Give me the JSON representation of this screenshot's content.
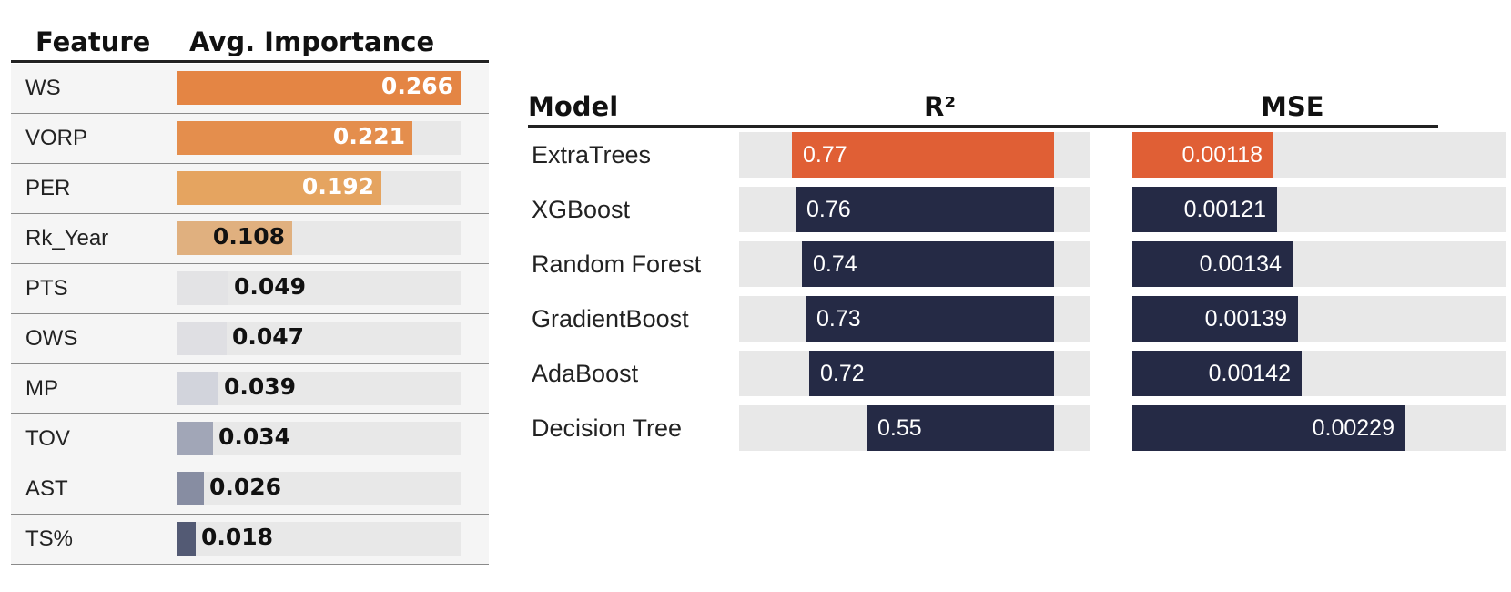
{
  "feature_table": {
    "headers": {
      "feature": "Feature",
      "importance": "Avg. Importance"
    }
  },
  "model_table": {
    "headers": {
      "model": "Model",
      "r2": "R²",
      "mse": "MSE"
    }
  },
  "colors": {
    "accent_orange": "#e05f35",
    "navy": "#252a45",
    "track": "#e8e8e8"
  },
  "chart_data": [
    {
      "type": "bar",
      "orientation": "horizontal",
      "categories": [
        "WS",
        "VORP",
        "PER",
        "Rk_Year",
        "PTS",
        "OWS",
        "MP",
        "TOV",
        "AST",
        "TS%"
      ],
      "values": [
        0.266,
        0.221,
        0.192,
        0.108,
        0.049,
        0.047,
        0.039,
        0.034,
        0.026,
        0.018
      ],
      "labels": [
        "0.266",
        "0.221",
        "0.192",
        "0.108",
        "0.049",
        "0.047",
        "0.039",
        "0.034",
        "0.026",
        "0.018"
      ],
      "colors": [
        "#e48544",
        "#e48e4d",
        "#e5a460",
        "#e0b07f",
        "#e3e3e5",
        "#dfdfe3",
        "#d2d4dc",
        "#a1a6b7",
        "#878da2",
        "#535a74"
      ],
      "xlim": [
        0,
        0.266
      ]
    },
    {
      "type": "bar",
      "orientation": "horizontal",
      "categories": [
        "ExtraTrees",
        "XGBoost",
        "Random Forest",
        "GradientBoost",
        "AdaBoost",
        "Decision Tree"
      ],
      "series": [
        {
          "name": "R²",
          "values": [
            0.77,
            0.76,
            0.74,
            0.73,
            0.72,
            0.55
          ],
          "labels": [
            "0.77",
            "0.76",
            "0.74",
            "0.73",
            "0.72",
            "0.55"
          ]
        },
        {
          "name": "MSE",
          "values": [
            0.00118,
            0.00121,
            0.00134,
            0.00139,
            0.00142,
            0.00229
          ],
          "labels": [
            "0.00118",
            "0.00121",
            "0.00134",
            "0.00139",
            "0.00142",
            "0.00229"
          ]
        }
      ],
      "highlight": "ExtraTrees"
    }
  ]
}
